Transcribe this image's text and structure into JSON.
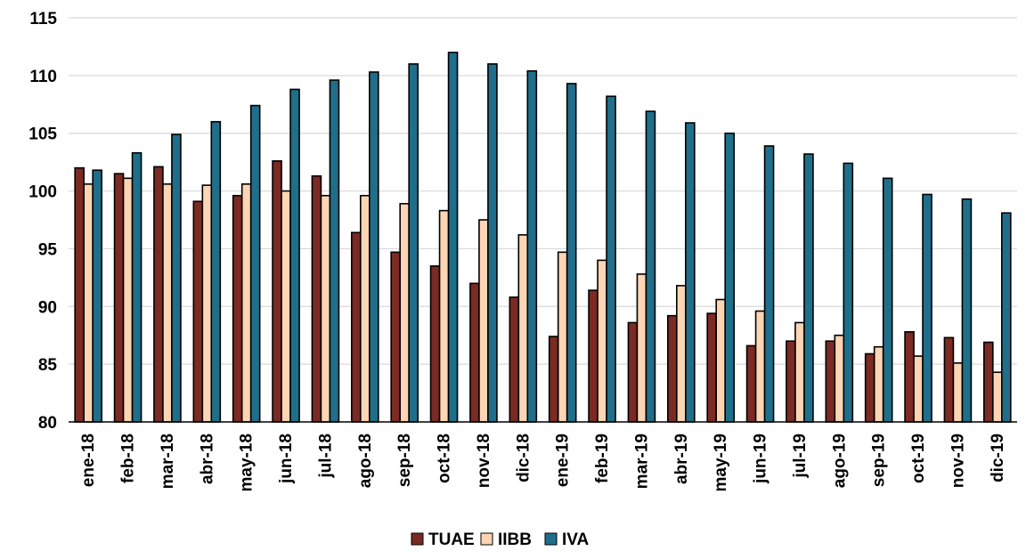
{
  "chart_data": {
    "type": "bar",
    "title": "",
    "xlabel": "",
    "ylabel": "",
    "ylim": [
      80,
      115
    ],
    "yticks": [
      80,
      85,
      90,
      95,
      100,
      105,
      110,
      115
    ],
    "grid": "horizontal",
    "legend": "bottom-center",
    "categories": [
      "ene-18",
      "feb-18",
      "mar-18",
      "abr-18",
      "may-18",
      "jun-18",
      "jul-18",
      "ago-18",
      "sep-18",
      "oct-18",
      "nov-18",
      "dic-18",
      "ene-19",
      "feb-19",
      "mar-19",
      "abr-19",
      "may-19",
      "jun-19",
      "jul-19",
      "ago-19",
      "sep-19",
      "oct-19",
      "nov-19",
      "dic-19"
    ],
    "series": [
      {
        "name": "TUAE",
        "color": "#7b2a24",
        "values": [
          102.0,
          101.5,
          102.1,
          99.1,
          99.6,
          102.6,
          101.3,
          96.4,
          94.7,
          93.5,
          92.0,
          90.8,
          87.4,
          91.4,
          88.6,
          89.2,
          89.4,
          86.6,
          87.0,
          87.0,
          85.9,
          87.8,
          87.3,
          86.9
        ]
      },
      {
        "name": "IIBB",
        "color": "#fcd5b4",
        "values": [
          100.6,
          101.1,
          100.6,
          100.5,
          100.6,
          100.0,
          99.6,
          99.6,
          98.9,
          98.3,
          97.5,
          96.2,
          94.7,
          94.0,
          92.8,
          91.8,
          90.6,
          89.6,
          88.6,
          87.5,
          86.5,
          85.7,
          85.1,
          84.3
        ]
      },
      {
        "name": "IVA",
        "color": "#1f6f8b",
        "values": [
          101.8,
          103.3,
          104.9,
          106.0,
          107.4,
          108.8,
          109.6,
          110.3,
          111.0,
          112.0,
          111.0,
          110.4,
          109.3,
          108.2,
          106.9,
          105.9,
          105.0,
          103.9,
          103.2,
          102.4,
          101.1,
          99.7,
          99.3,
          98.1
        ]
      }
    ]
  }
}
